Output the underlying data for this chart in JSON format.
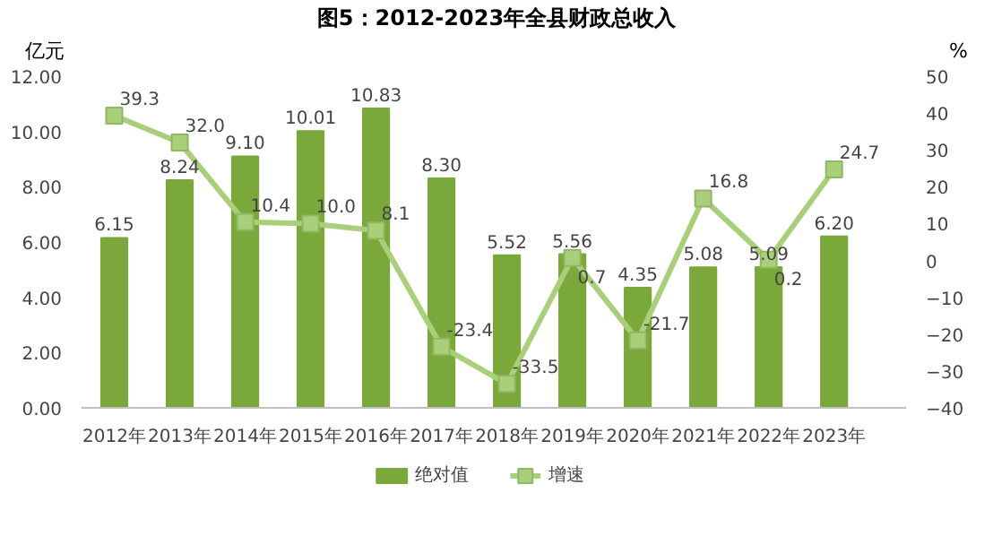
{
  "chart_data": {
    "type": "bar",
    "title": "图5：2012-2023年全县财政总收入",
    "ylabel": "亿元",
    "y2label": "%",
    "categories": [
      "2012年",
      "2013年",
      "2014年",
      "2015年",
      "2016年",
      "2017年",
      "2018年",
      "2019年",
      "2020年",
      "2021年",
      "2022年",
      "2023年"
    ],
    "series": [
      {
        "name": "绝对值",
        "color": "#7aa83a",
        "values": [
          6.15,
          8.24,
          9.1,
          10.01,
          10.83,
          8.3,
          5.52,
          5.56,
          4.35,
          5.08,
          5.09,
          6.2
        ],
        "value_labels": [
          "6.15",
          "8.24",
          "9.10",
          "10.01",
          "10.83",
          "8.30",
          "5.52",
          "5.56",
          "4.35",
          "5.08",
          "5.09",
          "6.20"
        ]
      },
      {
        "name": "增速",
        "type": "line",
        "axis": "y2",
        "color": "#a9cf7a",
        "marker": "square",
        "values": [
          39.3,
          32.0,
          10.4,
          10.0,
          8.1,
          -23.4,
          -33.5,
          0.7,
          -21.7,
          16.8,
          0.2,
          24.7
        ],
        "value_labels": [
          "39.3",
          "32.0",
          "10.4",
          "10.0",
          "8.1",
          "-23.4",
          "-33.5",
          "0.7",
          "-21.7",
          "16.8",
          "0.2",
          "24.7"
        ]
      }
    ],
    "ylim": [
      0,
      12
    ],
    "yticks": [
      {
        "value": 0,
        "label": "0.00"
      },
      {
        "value": 2,
        "label": "2.00"
      },
      {
        "value": 4,
        "label": "4.00"
      },
      {
        "value": 6,
        "label": "6.00"
      },
      {
        "value": 8,
        "label": "8.00"
      },
      {
        "value": 10,
        "label": "10.00"
      },
      {
        "value": 12,
        "label": "12.00"
      }
    ],
    "y2lim": [
      -40,
      50
    ],
    "y2ticks": [
      -40,
      -30,
      -20,
      -10,
      0,
      10,
      20,
      30,
      40,
      50
    ],
    "grid": false,
    "legend": "bottom"
  }
}
